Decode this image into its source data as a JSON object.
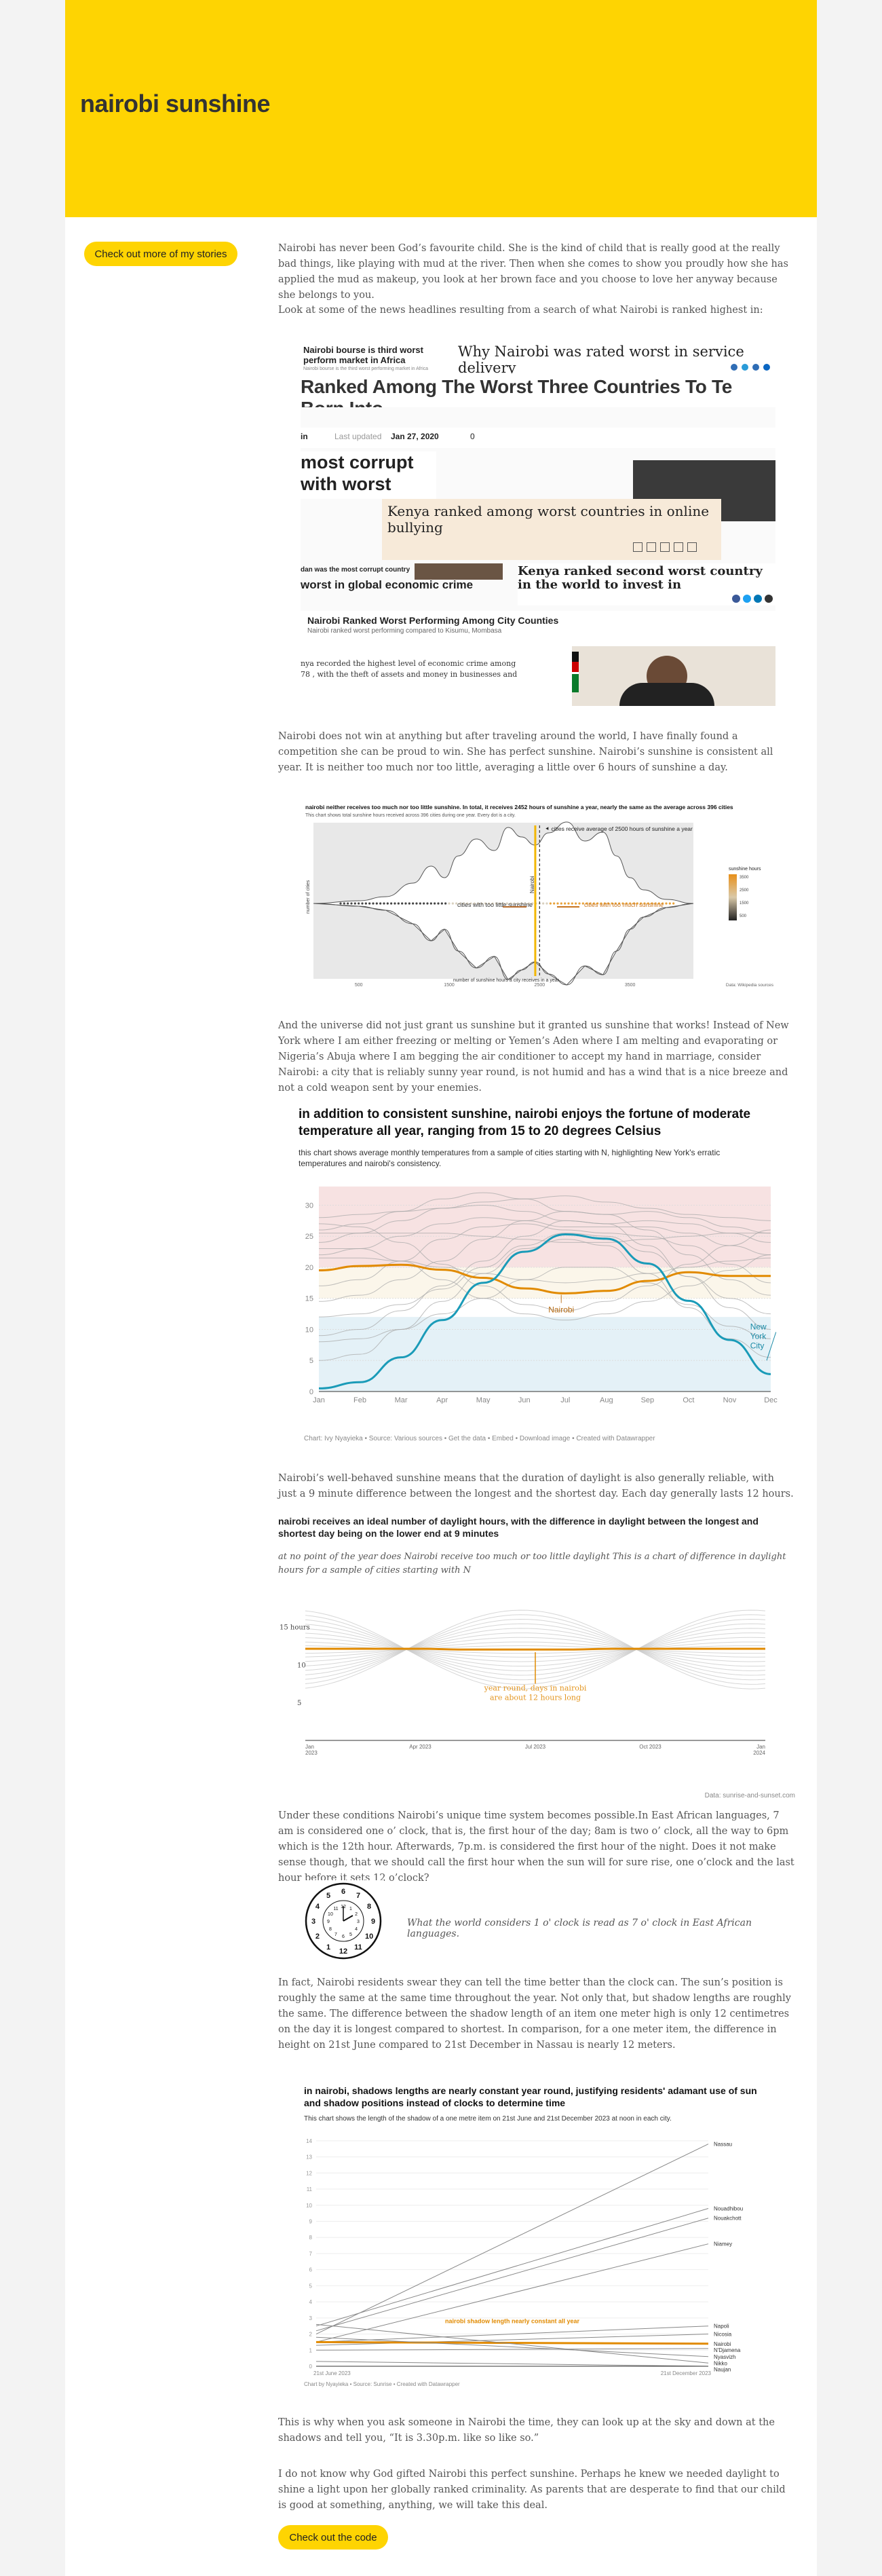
{
  "header": {
    "title": "nairobi sunshine"
  },
  "sidebar": {
    "stories_button": "Check out more of my stories"
  },
  "paragraphs": {
    "p1": "Nairobi has never been God’s favourite child. She is the kind of child that is really good at the really bad things, like playing with mud at the river. Then when she comes to show you proudly how she has applied the mud as makeup, you look at her brown face and you choose to love her anyway because she belongs to you.",
    "p2": "Look at some of the news headlines resulting from a search of what Nairobi is ranked highest in:",
    "p3": "Nairobi does not win at anything but after traveling around the world, I have finally found a competition she can be proud to win. She has perfect sunshine. Nairobi’s sunshine is consistent all year. It is neither too much nor too little, averaging a little over 6 hours of sunshine a day.",
    "p4": "And the universe did not just grant us sunshine but it granted us sunshine that works! Instead of New York where I am either freezing or melting or Yemen’s Aden where I am melting and evaporating or Nigeria’s Abuja where I am begging the air conditioner to accept my hand in marriage, consider Nairobi: a city that is reliably sunny year round, is not humid and has a wind that is a nice breeze and not a cold weapon sent by your enemies.",
    "p5": "Nairobi’s well-behaved sunshine means that the duration of daylight is also generally reliable, with just a 9 minute difference between the longest and the shortest day. Each day generally lasts 12 hours.",
    "p6": "Under these conditions Nairobi’s unique time system becomes possible.In East African languages, 7 am is considered one o’ clock, that is, the first hour of the day; 8am is two o’ clock, all the way to 6pm which is the 12th hour. Afterwards, 7p.m. is considered the first hour of the night. Does it not make sense though, that we should call the first hour when the sun will for sure rise, one o’clock and the last hour before it sets 12 o’clock?",
    "p7": "In fact, Nairobi residents swear they can tell the time better than the clock can. The sun’s position is roughly the same at the same time throughout the year. Not only that, but shadow lengths are roughly the same. The difference between the shadow length of an item one meter high is only 12 centimetres on the day it is longest compared to shortest. In comparison, for a one meter item, the difference in height on 21st June compared to 21st December in Nassau is nearly 12 meters.",
    "p8": "This is why when you ask someone in Nairobi the time, they can look up at the sky and down at the shadows and tell you, “It is 3.30p.m. like so like so.”",
    "p9": "I do not know why God gifted Nairobi this perfect sunshine. Perhaps he knew we needed daylight to shine a light upon her globally ranked criminality. As parents that are desperate to find that our child is good at something, anything, we will take this deal."
  },
  "clock_caption": "What the world considers 1 o' clock is read as 7 o' clock in East African languages.",
  "code_button": "Check out the code",
  "collage": {
    "h1": "Nairobi bourse is third worst perform market in Africa",
    "h1_sub": "Nairobi bourse is the third worst performing market in Africa",
    "h2": "Why Nairobi was rated worst in service delivery",
    "h3": "Ranked Among The Worst Three Countries To Te Born Into",
    "h4_meta_in": "in",
    "h4_meta_updated": "Last updated",
    "h4_meta_date": "Jan 27, 2020",
    "h4_meta_comments": "0",
    "h5": "most corrupt with worst",
    "h6": "Kenya ranked among worst countries in online bullying",
    "h7": "dan was the most corrupt country",
    "h8": "worst in global economic crime",
    "h9": "Kenya ranked second worst country in the world to invest in",
    "h10": "Nairobi Ranked Worst Performing Among City Counties",
    "h10_sub": "Nairobi ranked worst performing compared to Kisumu, Mombasa",
    "h11": "nya recorded the highest level of economic crime among 78 , with the theft of assets and money in businesses and"
  },
  "chart_data": [
    {
      "type": "scatter",
      "title": "nairobi neither receives too much nor too little sunshine. In total, it receives 2452 hours of sunshine a year, nearly the same as the average across 396 cities",
      "subtitle": "This chart shows total sunshine hours received across 396 cities during one year. Every dot is a city.",
      "annotations": [
        "cities receive average of 2500 hours of sunshine a year",
        "Nairobi",
        "cities with too little sunshine",
        "cities with too much sunshine"
      ],
      "xlabel": "number of sunshine hours a city receives in a year",
      "ylabel": "number of cities",
      "xticks": [
        "500",
        "1500",
        "2500",
        "3500"
      ],
      "legend_title": "sunshine hours",
      "legend_ticks": [
        "3500",
        "2500",
        "1500",
        "500"
      ],
      "source": "Data: Wikipedia sources",
      "markers": {
        "average": 2500,
        "nairobi": 2452
      }
    },
    {
      "type": "line",
      "title": "in addition to consistent sunshine, nairobi enjoys the fortune of moderate temperature all year, ranging from 15 to 20 degrees Celsius",
      "subtitle": "this chart shows average monthly temperatures from a sample of cities starting with N, highlighting New York's erratic temperatures and nairobi's consistency.",
      "categories": [
        "Jan",
        "Feb",
        "Mar",
        "Apr",
        "May",
        "Jun",
        "Jul",
        "Aug",
        "Sep",
        "Oct",
        "Nov",
        "Dec"
      ],
      "yticks": [
        0,
        5,
        10,
        15,
        20,
        25,
        30
      ],
      "ylim": [
        0,
        33
      ],
      "series": [
        {
          "name": "Nairobi",
          "values": [
            19.5,
            20.2,
            20.4,
            19.6,
            18.3,
            16.6,
            15.8,
            16.2,
            17.8,
            19.2,
            18.6,
            18.6
          ],
          "color": "#e18a00"
        },
        {
          "name": "New York City",
          "values": [
            0.5,
            1.5,
            5.5,
            11.5,
            17.5,
            22.5,
            25.3,
            24.6,
            20.6,
            14.6,
            8.3,
            2.8
          ],
          "color": "#1a9bb8"
        }
      ],
      "background_series": [
        [
          28,
          28.5,
          29,
          29.5,
          30.5,
          31,
          31.5,
          30.5,
          29.5,
          28.5,
          28,
          27.5
        ],
        [
          26,
          27,
          29,
          31,
          32,
          31,
          29,
          28.5,
          29,
          28,
          26.5,
          25.5
        ],
        [
          24,
          25.5,
          27.5,
          29.5,
          30,
          29,
          27.5,
          27,
          27.5,
          27,
          25.5,
          24
        ],
        [
          22,
          23,
          25,
          27,
          28,
          27.5,
          26.5,
          26.5,
          26.5,
          25.5,
          23.5,
          22
        ],
        [
          27,
          26.5,
          24,
          20.5,
          17,
          14,
          13,
          14.5,
          17,
          20.5,
          23.5,
          26
        ],
        [
          23,
          23,
          21,
          18,
          15,
          12.5,
          11.5,
          12.5,
          14.5,
          17,
          19.5,
          22
        ],
        [
          9,
          10,
          13,
          17,
          21,
          25,
          27.5,
          27,
          23.5,
          18.5,
          13.5,
          10
        ],
        [
          14.5,
          15.5,
          18,
          21,
          24.5,
          27.5,
          29,
          28.5,
          26,
          22,
          18,
          15.5
        ],
        [
          17,
          18,
          21,
          24.5,
          26.5,
          27,
          26,
          25.5,
          25,
          23.5,
          20.5,
          17.5
        ],
        [
          21.5,
          21.5,
          21,
          20,
          19,
          18,
          17.5,
          18,
          19,
          20,
          21,
          21.5
        ],
        [
          12,
          12.5,
          14,
          16.5,
          20,
          23.5,
          25.5,
          25,
          22.5,
          18.5,
          15,
          12.5
        ],
        [
          5,
          6,
          10,
          14.5,
          19,
          23,
          24.5,
          23.5,
          19,
          13.5,
          8.5,
          5.5
        ],
        [
          25.5,
          25.5,
          25.5,
          25.5,
          25,
          24.5,
          24,
          24,
          24.5,
          25,
          25.5,
          25.5
        ],
        [
          8,
          8.5,
          10,
          12.5,
          15,
          18,
          20,
          20,
          17.5,
          14,
          10.5,
          8.5
        ]
      ],
      "source": "Chart: Ivy Nyayieka • Source: Various sources • Get the data • Embed • Download image • Created with Datawrapper",
      "annotations": [
        "Nairobi",
        "New York City"
      ]
    },
    {
      "type": "line",
      "title": "nairobi receives an ideal number of daylight hours, with the difference in daylight between the longest and shortest day being on the lower end at 9 minutes",
      "subtitle": "at no point of the year does Nairobi receive too much or too little daylight This is a chart of difference in daylight hours for a sample of cities starting with N",
      "yticks_labels": [
        "15 hours",
        "10",
        "5"
      ],
      "yticks": [
        15,
        10,
        5
      ],
      "ylim": [
        0,
        19
      ],
      "xticks": [
        "Jan 2023",
        "Apr 2023",
        "Jul 2023",
        "Oct 2023",
        "Jan 2024"
      ],
      "series": [
        {
          "name": "Nairobi",
          "values": [
            12.1,
            12.1,
            12.1,
            12.1,
            12.0,
            12.0,
            12.0,
            12.0,
            12.1,
            12.1,
            12.1,
            12.1,
            12.1
          ],
          "color": "#e18a00"
        }
      ],
      "background_amplitudes": [
        0.5,
        1.0,
        1.6,
        2.2,
        2.8,
        3.4,
        4.0,
        4.6,
        5.2
      ],
      "annotation": "year round, days in nairobi are about 12 hours long",
      "source": "Data: sunrise-and-sunset.com"
    },
    {
      "type": "line",
      "title": "in nairobi, shadows lengths are nearly constant year round, justifying residents' adamant use of sun and shadow positions instead of clocks to determine time",
      "subtitle": "This chart shows the length of the shadow of a one metre item on 21st June and 21st December 2023 at noon in each city.",
      "categories": [
        "21st June 2023",
        "21st December 2023"
      ],
      "yticks": [
        0,
        1,
        2,
        3,
        4,
        5,
        6,
        7,
        8,
        9,
        10,
        11,
        12,
        13,
        14
      ],
      "ylim": [
        0,
        14.5
      ],
      "series": [
        {
          "name": "Nassau",
          "values": [
            2.0,
            13.8
          ]
        },
        {
          "name": "Nouadhibou",
          "values": [
            2.5,
            9.8
          ]
        },
        {
          "name": "Nouakchott",
          "values": [
            2.2,
            9.2
          ]
        },
        {
          "name": "Niamey",
          "values": [
            1.5,
            7.6
          ]
        },
        {
          "name": "Napoli",
          "values": [
            1.5,
            2.5
          ]
        },
        {
          "name": "Nicosia",
          "values": [
            1.3,
            2.0
          ]
        },
        {
          "name": "Nairobi",
          "values": [
            1.5,
            1.4
          ],
          "color": "#e18a00"
        },
        {
          "name": "N'Djamena",
          "values": [
            1.0,
            1.1
          ]
        },
        {
          "name": "Nyasvizh",
          "values": [
            1.8,
            0.6
          ]
        },
        {
          "name": "Nikko",
          "values": [
            2.6,
            0.2
          ]
        },
        {
          "name": "Naujan",
          "values": [
            0.3,
            0.0
          ]
        }
      ],
      "annotation": "nairobi shadow length nearly constant all year",
      "source": "Chart by Nyayieka • Source: Sunrise • Created with Datawrapper"
    }
  ]
}
